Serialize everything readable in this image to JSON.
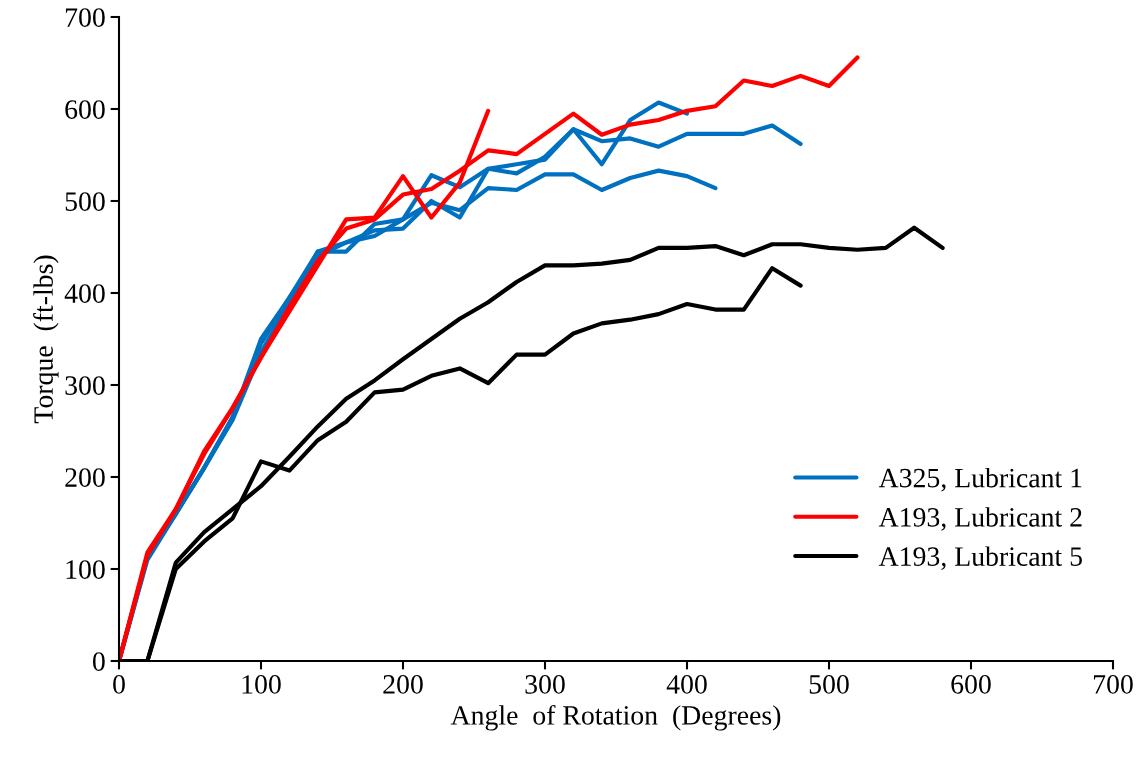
{
  "chart_data": {
    "type": "line",
    "xlabel": "Angle  of Rotation  (Degrees)",
    "ylabel": "Torque  (ft-lbs)",
    "xlim": [
      0,
      700
    ],
    "xticks": [
      0,
      100,
      200,
      300,
      400,
      500,
      600,
      700
    ],
    "ylim": [
      0,
      700
    ],
    "yticks": [
      0,
      100,
      200,
      300,
      400,
      500,
      600,
      700
    ],
    "grid": false,
    "legend": "bottom right",
    "marker": "none",
    "line_style": "solid",
    "series": [
      {
        "name": "A325, Lubricant 1",
        "color": "#0070c0",
        "x": [
          0,
          20,
          40,
          60,
          80,
          100,
          120,
          140,
          160,
          180,
          200,
          220,
          240,
          260,
          280,
          300,
          320,
          340,
          360,
          380,
          400
        ],
        "values": [
          0,
          110,
          160,
          210,
          262,
          335,
          390,
          445,
          445,
          475,
          480,
          528,
          515,
          535,
          540,
          545,
          578,
          540,
          588,
          607,
          595
        ]
      },
      {
        "color": "#0070c0",
        "x": [
          0,
          20,
          40,
          60,
          80,
          100,
          120,
          140,
          160,
          180,
          200,
          220,
          240,
          260,
          280,
          300,
          320,
          340,
          360,
          380,
          400,
          420,
          440,
          460,
          480
        ],
        "values": [
          0,
          113,
          160,
          210,
          265,
          345,
          395,
          440,
          455,
          468,
          470,
          500,
          482,
          535,
          530,
          548,
          578,
          565,
          568,
          559,
          573,
          573,
          573,
          582,
          562
        ]
      },
      {
        "color": "#0070c0",
        "x": [
          0,
          20,
          40,
          60,
          80,
          100,
          120,
          140,
          160,
          180,
          200,
          220,
          240,
          260,
          280,
          300,
          320,
          340,
          360,
          380,
          400,
          420
        ],
        "values": [
          0,
          113,
          160,
          210,
          265,
          350,
          395,
          445,
          455,
          462,
          480,
          498,
          490,
          514,
          512,
          529,
          529,
          512,
          525,
          533,
          527,
          514
        ]
      },
      {
        "name": "A193, Lubricant 2",
        "color": "#ff0000",
        "x": [
          0,
          20,
          40,
          60,
          80,
          100,
          120,
          140,
          160,
          180,
          200,
          220,
          240,
          260,
          280,
          300,
          320,
          340,
          360,
          380,
          400,
          420,
          440,
          460,
          480,
          500,
          520
        ],
        "values": [
          0,
          115,
          165,
          225,
          275,
          330,
          385,
          435,
          470,
          480,
          507,
          513,
          533,
          555,
          551,
          573,
          595,
          572,
          583,
          588,
          598,
          603,
          631,
          625,
          636,
          625,
          656
        ]
      },
      {
        "color": "#ff0000",
        "x": [
          0,
          20,
          40,
          60,
          80,
          100,
          120,
          140,
          160,
          180,
          200,
          220,
          240,
          260
        ],
        "values": [
          0,
          118,
          165,
          228,
          275,
          330,
          380,
          430,
          480,
          482,
          527,
          482,
          520,
          598
        ]
      },
      {
        "name": "A193, Lubricant 5",
        "color": "#000000",
        "x": [
          0,
          20,
          40,
          60,
          80,
          100,
          120,
          140,
          160,
          180,
          200,
          220,
          240,
          260,
          280,
          300,
          320,
          340,
          360,
          380,
          400,
          420,
          440,
          460,
          480,
          500,
          520,
          540,
          560,
          580
        ],
        "values": [
          0,
          0,
          107,
          140,
          165,
          190,
          222,
          255,
          285,
          305,
          328,
          350,
          372,
          390,
          412,
          430,
          430,
          432,
          436,
          449,
          449,
          451,
          441,
          453,
          453,
          449,
          447,
          449,
          471,
          449
        ]
      },
      {
        "color": "#000000",
        "x": [
          0,
          20,
          40,
          60,
          80,
          100,
          120,
          140,
          160,
          180,
          200,
          220,
          240,
          260,
          280,
          300,
          320,
          340,
          360,
          380,
          400,
          420,
          440,
          460,
          480
        ],
        "values": [
          0,
          0,
          100,
          130,
          155,
          217,
          207,
          240,
          260,
          292,
          295,
          310,
          318,
          302,
          333,
          333,
          356,
          367,
          371,
          377,
          388,
          382,
          382,
          427,
          408
        ]
      }
    ]
  }
}
